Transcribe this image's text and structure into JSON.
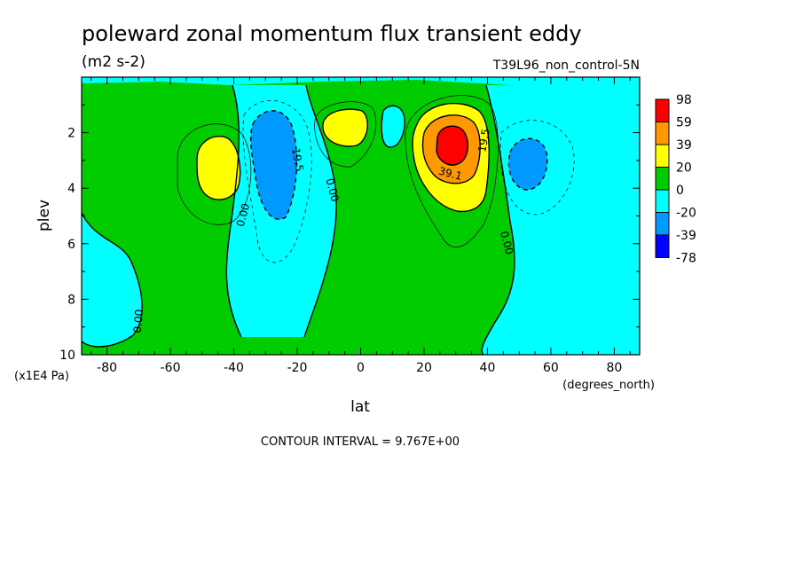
{
  "chart_data": {
    "type": "contour",
    "title": "poleward zonal momentum flux transient eddy",
    "units": "(m2 s-2)",
    "run_label": "T39L96_non_control-5N",
    "xlabel": "lat",
    "x_units": "(degrees_north)",
    "ylabel": "plev",
    "y_units": "(x1E4 Pa)",
    "xlim": [
      -88,
      88
    ],
    "ylim": [
      10,
      0
    ],
    "x_ticks": [
      -80,
      -60,
      -40,
      -20,
      0,
      20,
      40,
      60,
      80
    ],
    "y_ticks": [
      2,
      4,
      6,
      8,
      10
    ],
    "contour_interval_text": "CONTOUR INTERVAL = 9.767E+00",
    "colorbar": {
      "labels": [
        "98",
        "59",
        "39",
        "20",
        "0",
        "-20",
        "-39",
        "-78"
      ],
      "colors": [
        "#ff0000",
        "#ff9900",
        "#ffff00",
        "#00cc00",
        "#00ffff",
        "#0099ff",
        "#0000ff"
      ]
    },
    "features": [
      {
        "name": "northern-max",
        "lat": 30,
        "plev": 2.5,
        "value": 98
      },
      {
        "name": "southern-max",
        "lat": -46,
        "plev": 3.2,
        "value": 39
      },
      {
        "name": "equatorial-max",
        "lat": -5,
        "plev": 2.0,
        "value": 20
      },
      {
        "name": "southern-min",
        "lat": -27,
        "plev": 3.0,
        "value": -39
      },
      {
        "name": "northern-min",
        "lat": 53,
        "plev": 3.2,
        "value": -39
      }
    ],
    "contour_labels": [
      {
        "text": "0.00",
        "lat": -36,
        "plev": 5.0,
        "angle": -75
      },
      {
        "text": "19.5",
        "lat": -21,
        "plev": 3.0,
        "angle": 80
      },
      {
        "text": "0.00",
        "lat": -10,
        "plev": 4.1,
        "angle": 75
      },
      {
        "text": "39.1",
        "lat": 28,
        "plev": 3.6,
        "angle": 15
      },
      {
        "text": "19.5",
        "lat": 40,
        "plev": 2.3,
        "angle": -80
      },
      {
        "text": "0.00",
        "lat": 45,
        "plev": 6.0,
        "angle": 75
      },
      {
        "text": "0.00",
        "lat": -69,
        "plev": 8.8,
        "angle": -85
      }
    ]
  }
}
